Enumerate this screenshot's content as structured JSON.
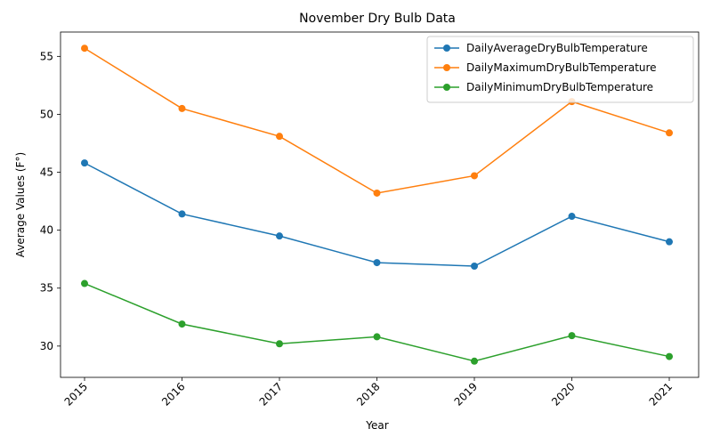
{
  "chart_data": {
    "type": "line",
    "title": "November Dry Bulb Data",
    "xlabel": "Year",
    "ylabel": "Average Values (F°)",
    "x": [
      "2015",
      "2016",
      "2017",
      "2018",
      "2019",
      "2020",
      "2021"
    ],
    "ylim": [
      27.3,
      57.1
    ],
    "yticks": [
      30,
      35,
      40,
      45,
      50,
      55
    ],
    "grid": false,
    "legend_position": "top-right",
    "series": [
      {
        "name": "DailyAverageDryBulbTemperature",
        "color": "#1f77b4",
        "values": [
          45.8,
          41.4,
          39.5,
          37.2,
          36.9,
          41.2,
          39.0
        ]
      },
      {
        "name": "DailyMaximumDryBulbTemperature",
        "color": "#ff7f0e",
        "values": [
          55.7,
          50.5,
          48.1,
          43.2,
          44.7,
          51.1,
          48.4
        ]
      },
      {
        "name": "DailyMinimumDryBulbTemperature",
        "color": "#2ca02c",
        "values": [
          35.4,
          31.9,
          30.2,
          30.8,
          28.7,
          30.9,
          29.1
        ]
      }
    ]
  }
}
